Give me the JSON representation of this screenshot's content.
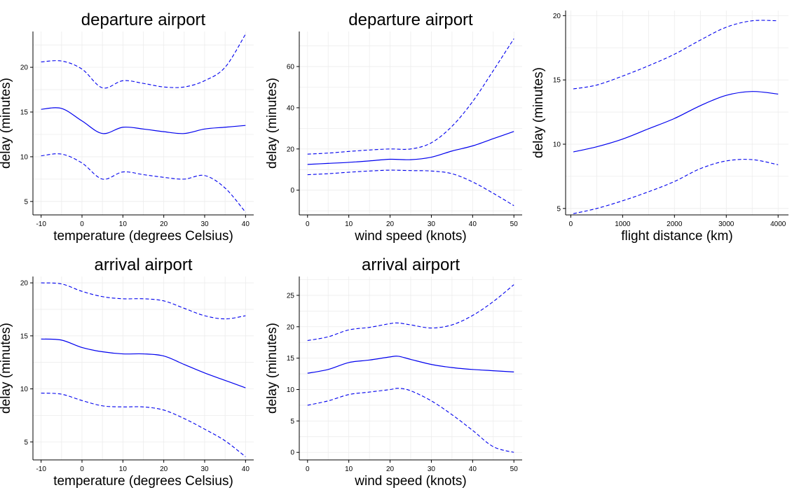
{
  "chart_data": [
    {
      "type": "line",
      "title": "departure airport",
      "xlabel": "temperature (degrees Celsius)",
      "ylabel": "delay (minutes)",
      "xlim": [
        -12,
        42
      ],
      "ylim": [
        3.5,
        24
      ],
      "xticks": [
        -10,
        0,
        10,
        20,
        30,
        40
      ],
      "yticks": [
        5,
        10,
        15,
        20
      ],
      "series": [
        {
          "role": "estimate",
          "x": [
            -10,
            -5,
            0,
            5,
            10,
            15,
            20,
            25,
            30,
            35,
            40
          ],
          "y": [
            15.3,
            15.4,
            14.0,
            12.6,
            13.3,
            13.1,
            12.8,
            12.6,
            13.1,
            13.3,
            13.5
          ]
        },
        {
          "role": "upper",
          "x": [
            -10,
            -5,
            0,
            5,
            10,
            15,
            20,
            25,
            30,
            35,
            40
          ],
          "y": [
            20.6,
            20.7,
            19.8,
            17.7,
            18.5,
            18.2,
            17.8,
            17.8,
            18.5,
            20.0,
            23.7
          ]
        },
        {
          "role": "lower",
          "x": [
            -10,
            -5,
            0,
            5,
            10,
            15,
            20,
            25,
            30,
            35,
            40
          ],
          "y": [
            10.1,
            10.3,
            9.3,
            7.5,
            8.3,
            8.0,
            7.7,
            7.5,
            7.9,
            6.5,
            3.8
          ]
        }
      ]
    },
    {
      "type": "line",
      "title": "departure airport",
      "xlabel": "wind speed (knots)",
      "ylabel": "delay (minutes)",
      "xlim": [
        -2,
        52
      ],
      "ylim": [
        -12,
        77
      ],
      "xticks": [
        0,
        10,
        20,
        30,
        40,
        50
      ],
      "yticks": [
        0,
        20,
        40,
        60
      ],
      "series": [
        {
          "role": "estimate",
          "x": [
            0,
            5,
            10,
            15,
            20,
            25,
            30,
            35,
            40,
            45,
            50
          ],
          "y": [
            12.5,
            13.0,
            13.5,
            14.2,
            15.0,
            14.8,
            16.0,
            19.0,
            21.5,
            25.0,
            28.5
          ]
        },
        {
          "role": "upper",
          "x": [
            0,
            5,
            10,
            15,
            20,
            25,
            30,
            35,
            40,
            45,
            50
          ],
          "y": [
            17.5,
            18.0,
            18.8,
            19.5,
            20.0,
            20.0,
            23.0,
            31.0,
            43.0,
            58.0,
            73.5
          ]
        },
        {
          "role": "lower",
          "x": [
            0,
            5,
            10,
            15,
            20,
            25,
            30,
            35,
            40,
            45,
            50
          ],
          "y": [
            7.5,
            8.0,
            8.7,
            9.3,
            9.7,
            9.5,
            9.3,
            8.0,
            4.0,
            -1.5,
            -7.5
          ]
        }
      ]
    },
    {
      "type": "line",
      "title": "",
      "xlabel": "flight distance (km)",
      "ylabel": "delay (minutes)",
      "xlim": [
        -100,
        4200
      ],
      "ylim": [
        4.5,
        20.4
      ],
      "xticks": [
        0,
        1000,
        2000,
        3000,
        4000
      ],
      "yticks": [
        5,
        10,
        15,
        20
      ],
      "series": [
        {
          "role": "estimate",
          "x": [
            50,
            500,
            1000,
            1500,
            2000,
            2500,
            3000,
            3500,
            4000
          ],
          "y": [
            9.4,
            9.8,
            10.4,
            11.2,
            12.0,
            13.0,
            13.8,
            14.1,
            13.9
          ]
        },
        {
          "role": "upper",
          "x": [
            50,
            500,
            1000,
            1500,
            2000,
            2500,
            3000,
            3500,
            4000
          ],
          "y": [
            14.3,
            14.6,
            15.3,
            16.1,
            17.0,
            18.1,
            19.1,
            19.6,
            19.6
          ]
        },
        {
          "role": "lower",
          "x": [
            50,
            500,
            1000,
            1500,
            2000,
            2500,
            3000,
            3500,
            4000
          ],
          "y": [
            4.6,
            5.0,
            5.6,
            6.3,
            7.1,
            8.1,
            8.7,
            8.8,
            8.4
          ]
        }
      ]
    },
    {
      "type": "line",
      "title": "arrival airport",
      "xlabel": "temperature (degrees Celsius)",
      "ylabel": "delay (minutes)",
      "xlim": [
        -12,
        42
      ],
      "ylim": [
        3.3,
        20.6
      ],
      "xticks": [
        -10,
        0,
        10,
        20,
        30,
        40
      ],
      "yticks": [
        5,
        10,
        15,
        20
      ],
      "series": [
        {
          "role": "estimate",
          "x": [
            -10,
            -5,
            0,
            5,
            10,
            15,
            20,
            25,
            30,
            35,
            40
          ],
          "y": [
            14.7,
            14.6,
            13.9,
            13.5,
            13.3,
            13.3,
            13.1,
            12.3,
            11.5,
            10.8,
            10.1
          ]
        },
        {
          "role": "upper",
          "x": [
            -10,
            -5,
            0,
            5,
            10,
            15,
            20,
            25,
            30,
            35,
            40
          ],
          "y": [
            20.0,
            19.9,
            19.2,
            18.7,
            18.5,
            18.5,
            18.3,
            17.6,
            16.9,
            16.6,
            16.9
          ]
        },
        {
          "role": "lower",
          "x": [
            -10,
            -5,
            0,
            5,
            10,
            15,
            20,
            25,
            30,
            35,
            40
          ],
          "y": [
            9.6,
            9.5,
            8.9,
            8.4,
            8.3,
            8.3,
            8.0,
            7.2,
            6.2,
            5.1,
            3.6
          ]
        }
      ]
    },
    {
      "type": "line",
      "title": "arrival airport",
      "xlabel": "wind speed (knots)",
      "ylabel": "delay (minutes)",
      "xlim": [
        -2,
        52
      ],
      "ylim": [
        -1.2,
        28
      ],
      "xticks": [
        0,
        10,
        20,
        30,
        40,
        50
      ],
      "yticks": [
        0,
        5,
        10,
        15,
        20,
        25
      ],
      "series": [
        {
          "role": "estimate",
          "x": [
            0,
            5,
            10,
            15,
            20,
            22,
            25,
            30,
            35,
            40,
            45,
            50
          ],
          "y": [
            12.6,
            13.2,
            14.3,
            14.7,
            15.2,
            15.3,
            14.8,
            14.0,
            13.5,
            13.2,
            13.0,
            12.8
          ]
        },
        {
          "role": "upper",
          "x": [
            0,
            5,
            10,
            15,
            20,
            22,
            25,
            30,
            35,
            40,
            45,
            50
          ],
          "y": [
            17.8,
            18.4,
            19.5,
            19.9,
            20.5,
            20.6,
            20.3,
            19.8,
            20.3,
            21.8,
            24.0,
            26.7
          ]
        },
        {
          "role": "lower",
          "x": [
            0,
            5,
            10,
            15,
            20,
            22,
            25,
            30,
            35,
            40,
            45,
            50
          ],
          "y": [
            7.5,
            8.2,
            9.2,
            9.6,
            10.0,
            10.2,
            9.8,
            8.2,
            6.0,
            3.5,
            0.9,
            0.0
          ]
        }
      ]
    }
  ]
}
